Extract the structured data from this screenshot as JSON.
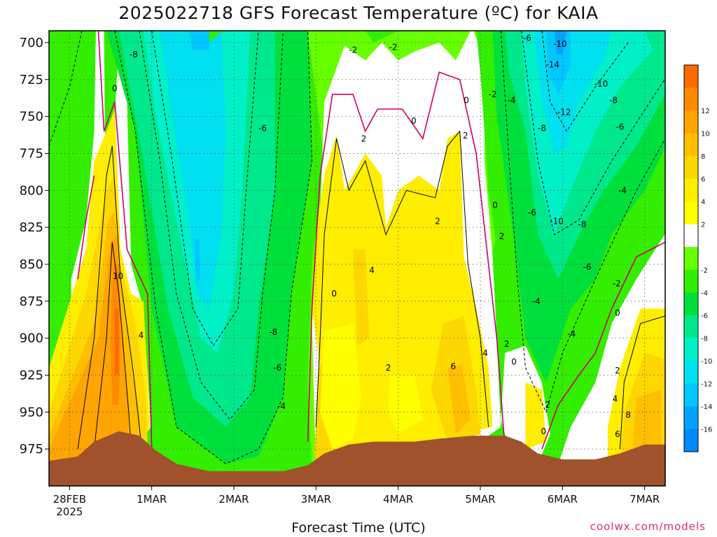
{
  "chart_data": {
    "type": "heatmap",
    "title": "2025022718 GFS Forecast Temperature (ºC) for KAIA",
    "xlabel": "Forecast Time (UTC)",
    "ylabel": "",
    "y_levels": [
      700,
      725,
      750,
      775,
      800,
      825,
      850,
      875,
      900,
      925,
      950,
      975
    ],
    "y_range": [
      1000,
      692
    ],
    "x_ticks": [
      {
        "label": "28FEB",
        "sub": "2025",
        "day": 0
      },
      {
        "label": "1MAR",
        "day": 1
      },
      {
        "label": "2MAR",
        "day": 2
      },
      {
        "label": "3MAR",
        "day": 3
      },
      {
        "label": "4MAR",
        "day": 4
      },
      {
        "label": "5MAR",
        "day": 5
      },
      {
        "label": "6MAR",
        "day": 6
      },
      {
        "label": "7MAR",
        "day": 7
      }
    ],
    "x_range": [
      -0.25,
      7.25
    ],
    "colorbar": {
      "ticks": [
        12,
        10,
        8,
        6,
        4,
        2,
        -2,
        -4,
        -6,
        -8,
        -10,
        -12,
        -14,
        -16
      ],
      "bands": [
        {
          "max": 14,
          "color": "#ff6a00"
        },
        {
          "max": 12,
          "color": "#ff8a00"
        },
        {
          "max": 10,
          "color": "#ffa400"
        },
        {
          "max": 8,
          "color": "#ffbe00"
        },
        {
          "max": 6,
          "color": "#ffd700"
        },
        {
          "max": 4,
          "color": "#ffee00"
        },
        {
          "max": 2,
          "color": "#ffff00"
        },
        {
          "max": 0,
          "color": "#ffffff"
        },
        {
          "max": -2,
          "color": "#66ff00"
        },
        {
          "max": -4,
          "color": "#33ee00"
        },
        {
          "max": -6,
          "color": "#00e03c"
        },
        {
          "max": -8,
          "color": "#00e88c"
        },
        {
          "max": -10,
          "color": "#00f0c8"
        },
        {
          "max": -12,
          "color": "#00e0f0"
        },
        {
          "max": -14,
          "color": "#00c8ff"
        },
        {
          "max": -16,
          "color": "#00a4ff"
        },
        {
          "max": -18,
          "color": "#0088ff"
        }
      ]
    },
    "contour_labels": [
      {
        "text": "-8",
        "day": 0.78,
        "p": 708
      },
      {
        "text": "0",
        "day": 0.55,
        "p": 731
      },
      {
        "text": "10",
        "day": 0.59,
        "p": 858
      },
      {
        "text": "4",
        "day": 0.87,
        "p": 898
      },
      {
        "text": "-6",
        "day": 2.35,
        "p": 758
      },
      {
        "text": "-8",
        "day": 2.48,
        "p": 896
      },
      {
        "text": "-6",
        "day": 2.53,
        "p": 920
      },
      {
        "text": "-4",
        "day": 2.58,
        "p": 946
      },
      {
        "text": "-2",
        "day": 3.45,
        "p": 705
      },
      {
        "text": "2",
        "day": 3.58,
        "p": 765
      },
      {
        "text": "0",
        "day": 3.22,
        "p": 870
      },
      {
        "text": "4",
        "day": 3.68,
        "p": 854
      },
      {
        "text": "2",
        "day": 3.88,
        "p": 920
      },
      {
        "text": "-2",
        "day": 3.94,
        "p": 703
      },
      {
        "text": "0",
        "day": 4.19,
        "p": 753
      },
      {
        "text": "2",
        "day": 4.48,
        "p": 821
      },
      {
        "text": "6",
        "day": 4.67,
        "p": 919
      },
      {
        "text": "4",
        "day": 5.06,
        "p": 910
      },
      {
        "text": "0",
        "day": 4.83,
        "p": 739
      },
      {
        "text": "-2",
        "day": 5.15,
        "p": 735
      },
      {
        "text": "-4",
        "day": 5.38,
        "p": 739
      },
      {
        "text": "2",
        "day": 4.82,
        "p": 763
      },
      {
        "text": "0",
        "day": 5.18,
        "p": 810
      },
      {
        "text": "2",
        "day": 5.26,
        "p": 831
      },
      {
        "text": "2",
        "day": 5.32,
        "p": 904
      },
      {
        "text": "0",
        "day": 5.41,
        "p": 916
      },
      {
        "text": "-6",
        "day": 5.57,
        "p": 697
      },
      {
        "text": "-10",
        "day": 5.97,
        "p": 701
      },
      {
        "text": "-14",
        "day": 5.88,
        "p": 715
      },
      {
        "text": "-12",
        "day": 6.02,
        "p": 747
      },
      {
        "text": "-8",
        "day": 5.75,
        "p": 758
      },
      {
        "text": "-10",
        "day": 6.47,
        "p": 728
      },
      {
        "text": "-8",
        "day": 6.62,
        "p": 739
      },
      {
        "text": "-6",
        "day": 6.7,
        "p": 757
      },
      {
        "text": "-6",
        "day": 5.63,
        "p": 815
      },
      {
        "text": "-10",
        "day": 5.93,
        "p": 821
      },
      {
        "text": "-8",
        "day": 6.24,
        "p": 823
      },
      {
        "text": "-4",
        "day": 6.73,
        "p": 800
      },
      {
        "text": "-6",
        "day": 6.3,
        "p": 852
      },
      {
        "text": "-4",
        "day": 5.68,
        "p": 875
      },
      {
        "text": "-4",
        "day": 6.11,
        "p": 897
      },
      {
        "text": "-2",
        "day": 6.66,
        "p": 863
      },
      {
        "text": "0",
        "day": 6.67,
        "p": 883
      },
      {
        "text": "2",
        "day": 6.67,
        "p": 922
      },
      {
        "text": "4",
        "day": 6.64,
        "p": 941
      },
      {
        "text": "8",
        "day": 6.8,
        "p": 952
      },
      {
        "text": "6",
        "day": 6.67,
        "p": 965
      },
      {
        "text": "2",
        "day": 5.82,
        "p": 945
      },
      {
        "text": "0",
        "day": 5.77,
        "p": 963
      }
    ]
  },
  "credit": "coolwx.com/models"
}
